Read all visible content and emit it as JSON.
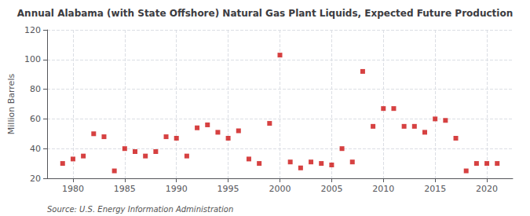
{
  "chart_data": {
    "type": "scatter",
    "title": "Annual Alabama (with State Offshore) Natural Gas Plant Liquids, Expected Future Production",
    "ylabel": "Million Barrels",
    "annotations": [
      "Source: U.S. Energy Information Administration"
    ],
    "x": [
      1979,
      1980,
      1981,
      1982,
      1983,
      1984,
      1985,
      1986,
      1987,
      1988,
      1989,
      1990,
      1991,
      1992,
      1993,
      1994,
      1995,
      1996,
      1997,
      1998,
      1999,
      2000,
      2001,
      2002,
      2003,
      2004,
      2005,
      2006,
      2007,
      2008,
      2009,
      2010,
      2011,
      2012,
      2013,
      2014,
      2015,
      2016,
      2017,
      2018,
      2019,
      2020,
      2021
    ],
    "values": [
      30,
      33,
      35,
      50,
      48,
      25,
      40,
      38,
      35,
      38,
      48,
      47,
      35,
      54,
      56,
      51,
      47,
      52,
      33,
      30,
      57,
      103,
      31,
      27,
      31,
      30,
      29,
      40,
      31,
      92,
      55,
      67,
      67,
      55,
      55,
      51,
      60,
      59,
      47,
      25,
      30,
      30,
      30
    ],
    "color": "#cc1111",
    "marker": "square",
    "xlim": [
      1977.5,
      2022.5
    ],
    "xticks": [
      1980,
      1985,
      1990,
      1995,
      2000,
      2005,
      2010,
      2015,
      2020
    ],
    "ylim": [
      20,
      120
    ],
    "yticks": [
      20,
      40,
      60,
      80,
      100,
      120
    ],
    "grid": true
  }
}
